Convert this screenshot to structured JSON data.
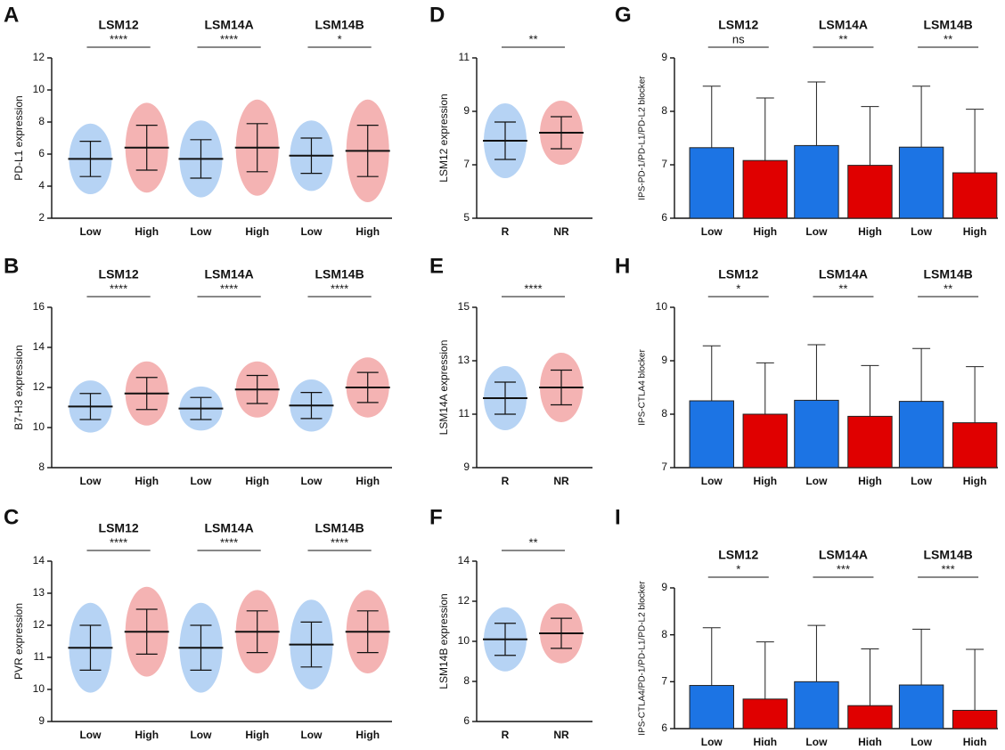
{
  "chart_data": [
    {
      "letter": "A",
      "type": "dot",
      "ylabel": "PD-L1 expression",
      "ylim": [
        2,
        12
      ],
      "yticks": [
        2,
        4,
        6,
        8,
        10,
        12
      ],
      "groups": [
        {
          "title": "LSM12",
          "significance": "****",
          "categories": [
            "Low",
            "High"
          ],
          "values": [
            5.7,
            6.4
          ],
          "errors": [
            1.1,
            1.4
          ]
        },
        {
          "title": "LSM14A",
          "significance": "****",
          "categories": [
            "Low",
            "High"
          ],
          "values": [
            5.7,
            6.4
          ],
          "errors": [
            1.2,
            1.5
          ]
        },
        {
          "title": "LSM14B",
          "significance": "*",
          "categories": [
            "Low",
            "High"
          ],
          "values": [
            5.9,
            6.2
          ],
          "errors": [
            1.1,
            1.6
          ]
        }
      ]
    },
    {
      "letter": "B",
      "type": "dot",
      "ylabel": "B7-H3 expression",
      "ylim": [
        8,
        16
      ],
      "yticks": [
        8,
        10,
        12,
        14,
        16
      ],
      "groups": [
        {
          "title": "LSM12",
          "significance": "****",
          "categories": [
            "Low",
            "High"
          ],
          "values": [
            11.05,
            11.7
          ],
          "errors": [
            0.65,
            0.8
          ]
        },
        {
          "title": "LSM14A",
          "significance": "****",
          "categories": [
            "Low",
            "High"
          ],
          "values": [
            10.95,
            11.9
          ],
          "errors": [
            0.55,
            0.7
          ]
        },
        {
          "title": "LSM14B",
          "significance": "****",
          "categories": [
            "Low",
            "High"
          ],
          "values": [
            11.1,
            12.0
          ],
          "errors": [
            0.65,
            0.75
          ]
        }
      ]
    },
    {
      "letter": "C",
      "type": "dot",
      "ylabel": "PVR expression",
      "ylim": [
        9,
        14
      ],
      "yticks": [
        9,
        10,
        11,
        12,
        13,
        14
      ],
      "groups": [
        {
          "title": "LSM12",
          "significance": "****",
          "categories": [
            "Low",
            "High"
          ],
          "values": [
            11.3,
            11.8
          ],
          "errors": [
            0.7,
            0.7
          ]
        },
        {
          "title": "LSM14A",
          "significance": "****",
          "categories": [
            "Low",
            "High"
          ],
          "values": [
            11.3,
            11.8
          ],
          "errors": [
            0.7,
            0.65
          ]
        },
        {
          "title": "LSM14B",
          "significance": "****",
          "categories": [
            "Low",
            "High"
          ],
          "values": [
            11.4,
            11.8
          ],
          "errors": [
            0.7,
            0.65
          ]
        }
      ]
    },
    {
      "letter": "D",
      "type": "dot",
      "ylabel": "LSM12 expression",
      "ylim": [
        5,
        11
      ],
      "yticks": [
        5,
        7,
        9,
        11
      ],
      "groups": [
        {
          "significance": "**",
          "categories": [
            "R",
            "NR"
          ],
          "values": [
            7.9,
            8.2
          ],
          "errors": [
            0.7,
            0.6
          ]
        }
      ]
    },
    {
      "letter": "E",
      "type": "dot",
      "ylabel": "LSM14A expression",
      "ylim": [
        9,
        15
      ],
      "yticks": [
        9,
        11,
        13,
        15
      ],
      "groups": [
        {
          "significance": "****",
          "categories": [
            "R",
            "NR"
          ],
          "values": [
            11.6,
            12.0
          ],
          "errors": [
            0.6,
            0.65
          ]
        }
      ]
    },
    {
      "letter": "F",
      "type": "dot",
      "ylabel": "LSM14B expression",
      "ylim": [
        6,
        14
      ],
      "yticks": [
        6,
        8,
        10,
        12,
        14
      ],
      "groups": [
        {
          "significance": "**",
          "categories": [
            "R",
            "NR"
          ],
          "values": [
            10.1,
            10.4
          ],
          "errors": [
            0.8,
            0.75
          ]
        }
      ]
    },
    {
      "letter": "G",
      "type": "bar",
      "ylabel": "IPS-PD-1/PD-L1/PD-L2 blocker",
      "ylim": [
        6,
        9
      ],
      "yticks": [
        6,
        7,
        8,
        9
      ],
      "groups": [
        {
          "title": "LSM12",
          "significance": "ns",
          "categories": [
            "Low",
            "High"
          ],
          "values": [
            7.32,
            7.08
          ],
          "errors": [
            1.15,
            1.17
          ]
        },
        {
          "title": "LSM14A",
          "significance": "**",
          "categories": [
            "Low",
            "High"
          ],
          "values": [
            7.36,
            6.99
          ],
          "errors": [
            1.19,
            1.1
          ]
        },
        {
          "title": "LSM14B",
          "significance": "**",
          "categories": [
            "Low",
            "High"
          ],
          "values": [
            7.33,
            6.85
          ],
          "errors": [
            1.14,
            1.19
          ]
        }
      ]
    },
    {
      "letter": "H",
      "type": "bar",
      "ylabel": "IPS-CTLA4 blocker",
      "ylim": [
        7,
        10
      ],
      "yticks": [
        7,
        8,
        9,
        10
      ],
      "groups": [
        {
          "title": "LSM12",
          "significance": "*",
          "categories": [
            "Low",
            "High"
          ],
          "values": [
            8.25,
            8.0
          ],
          "errors": [
            1.03,
            0.96
          ]
        },
        {
          "title": "LSM14A",
          "significance": "**",
          "categories": [
            "Low",
            "High"
          ],
          "values": [
            8.26,
            7.96
          ],
          "errors": [
            1.04,
            0.95
          ]
        },
        {
          "title": "LSM14B",
          "significance": "**",
          "categories": [
            "Low",
            "High"
          ],
          "values": [
            8.24,
            7.84
          ],
          "errors": [
            0.99,
            1.05
          ]
        }
      ]
    },
    {
      "letter": "I",
      "type": "bar",
      "ylabel": "IPS-CTLA4/PD-1/PD-L1/PD-L2 blocker",
      "ylim": [
        6,
        9
      ],
      "yticks": [
        6,
        7,
        8,
        9
      ],
      "groups": [
        {
          "title": "LSM12",
          "significance": "*",
          "categories": [
            "Low",
            "High"
          ],
          "values": [
            6.92,
            6.63
          ],
          "errors": [
            1.23,
            1.22
          ]
        },
        {
          "title": "LSM14A",
          "significance": "***",
          "categories": [
            "Low",
            "High"
          ],
          "values": [
            7.0,
            6.49
          ],
          "errors": [
            1.2,
            1.21
          ]
        },
        {
          "title": "LSM14B",
          "significance": "***",
          "categories": [
            "Low",
            "High"
          ],
          "values": [
            6.93,
            6.39
          ],
          "errors": [
            1.19,
            1.3
          ]
        }
      ]
    }
  ]
}
